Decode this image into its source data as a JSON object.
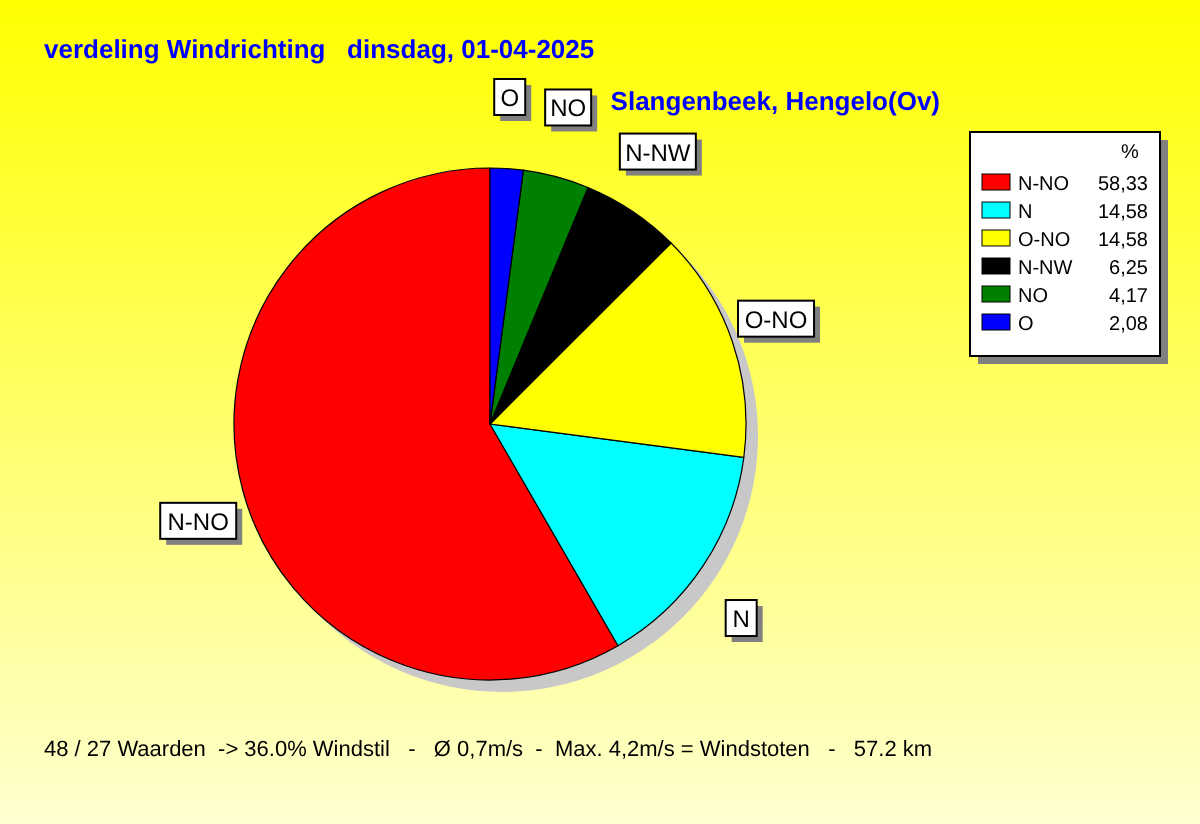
{
  "chart_data": {
    "type": "pie",
    "title": "verdeling Windrichting   dinsdag, 01-04-2025",
    "subtitle": "Slangenbeek, Hengelo(Ov)",
    "legend_title": "%",
    "legend": "top right",
    "categories": [
      "N-NO",
      "N",
      "O-NO",
      "N-NW",
      "NO",
      "O"
    ],
    "values": [
      58.33,
      14.58,
      14.58,
      6.25,
      4.17,
      2.08
    ],
    "value_labels": [
      "58,33",
      "14,58",
      "14,58",
      "6,25",
      "4,17",
      "2,08"
    ],
    "colors": [
      "#ff0000",
      "#00ffff",
      "#ffff00",
      "#000000",
      "#008000",
      "#0000ff"
    ],
    "annotations": [
      "48 / 27 Waarden  -> 36.0% Windstil   -   Ø 0,7m/s  -  Max. 4,2m/s = Windstoten   -   57.2 km"
    ]
  }
}
